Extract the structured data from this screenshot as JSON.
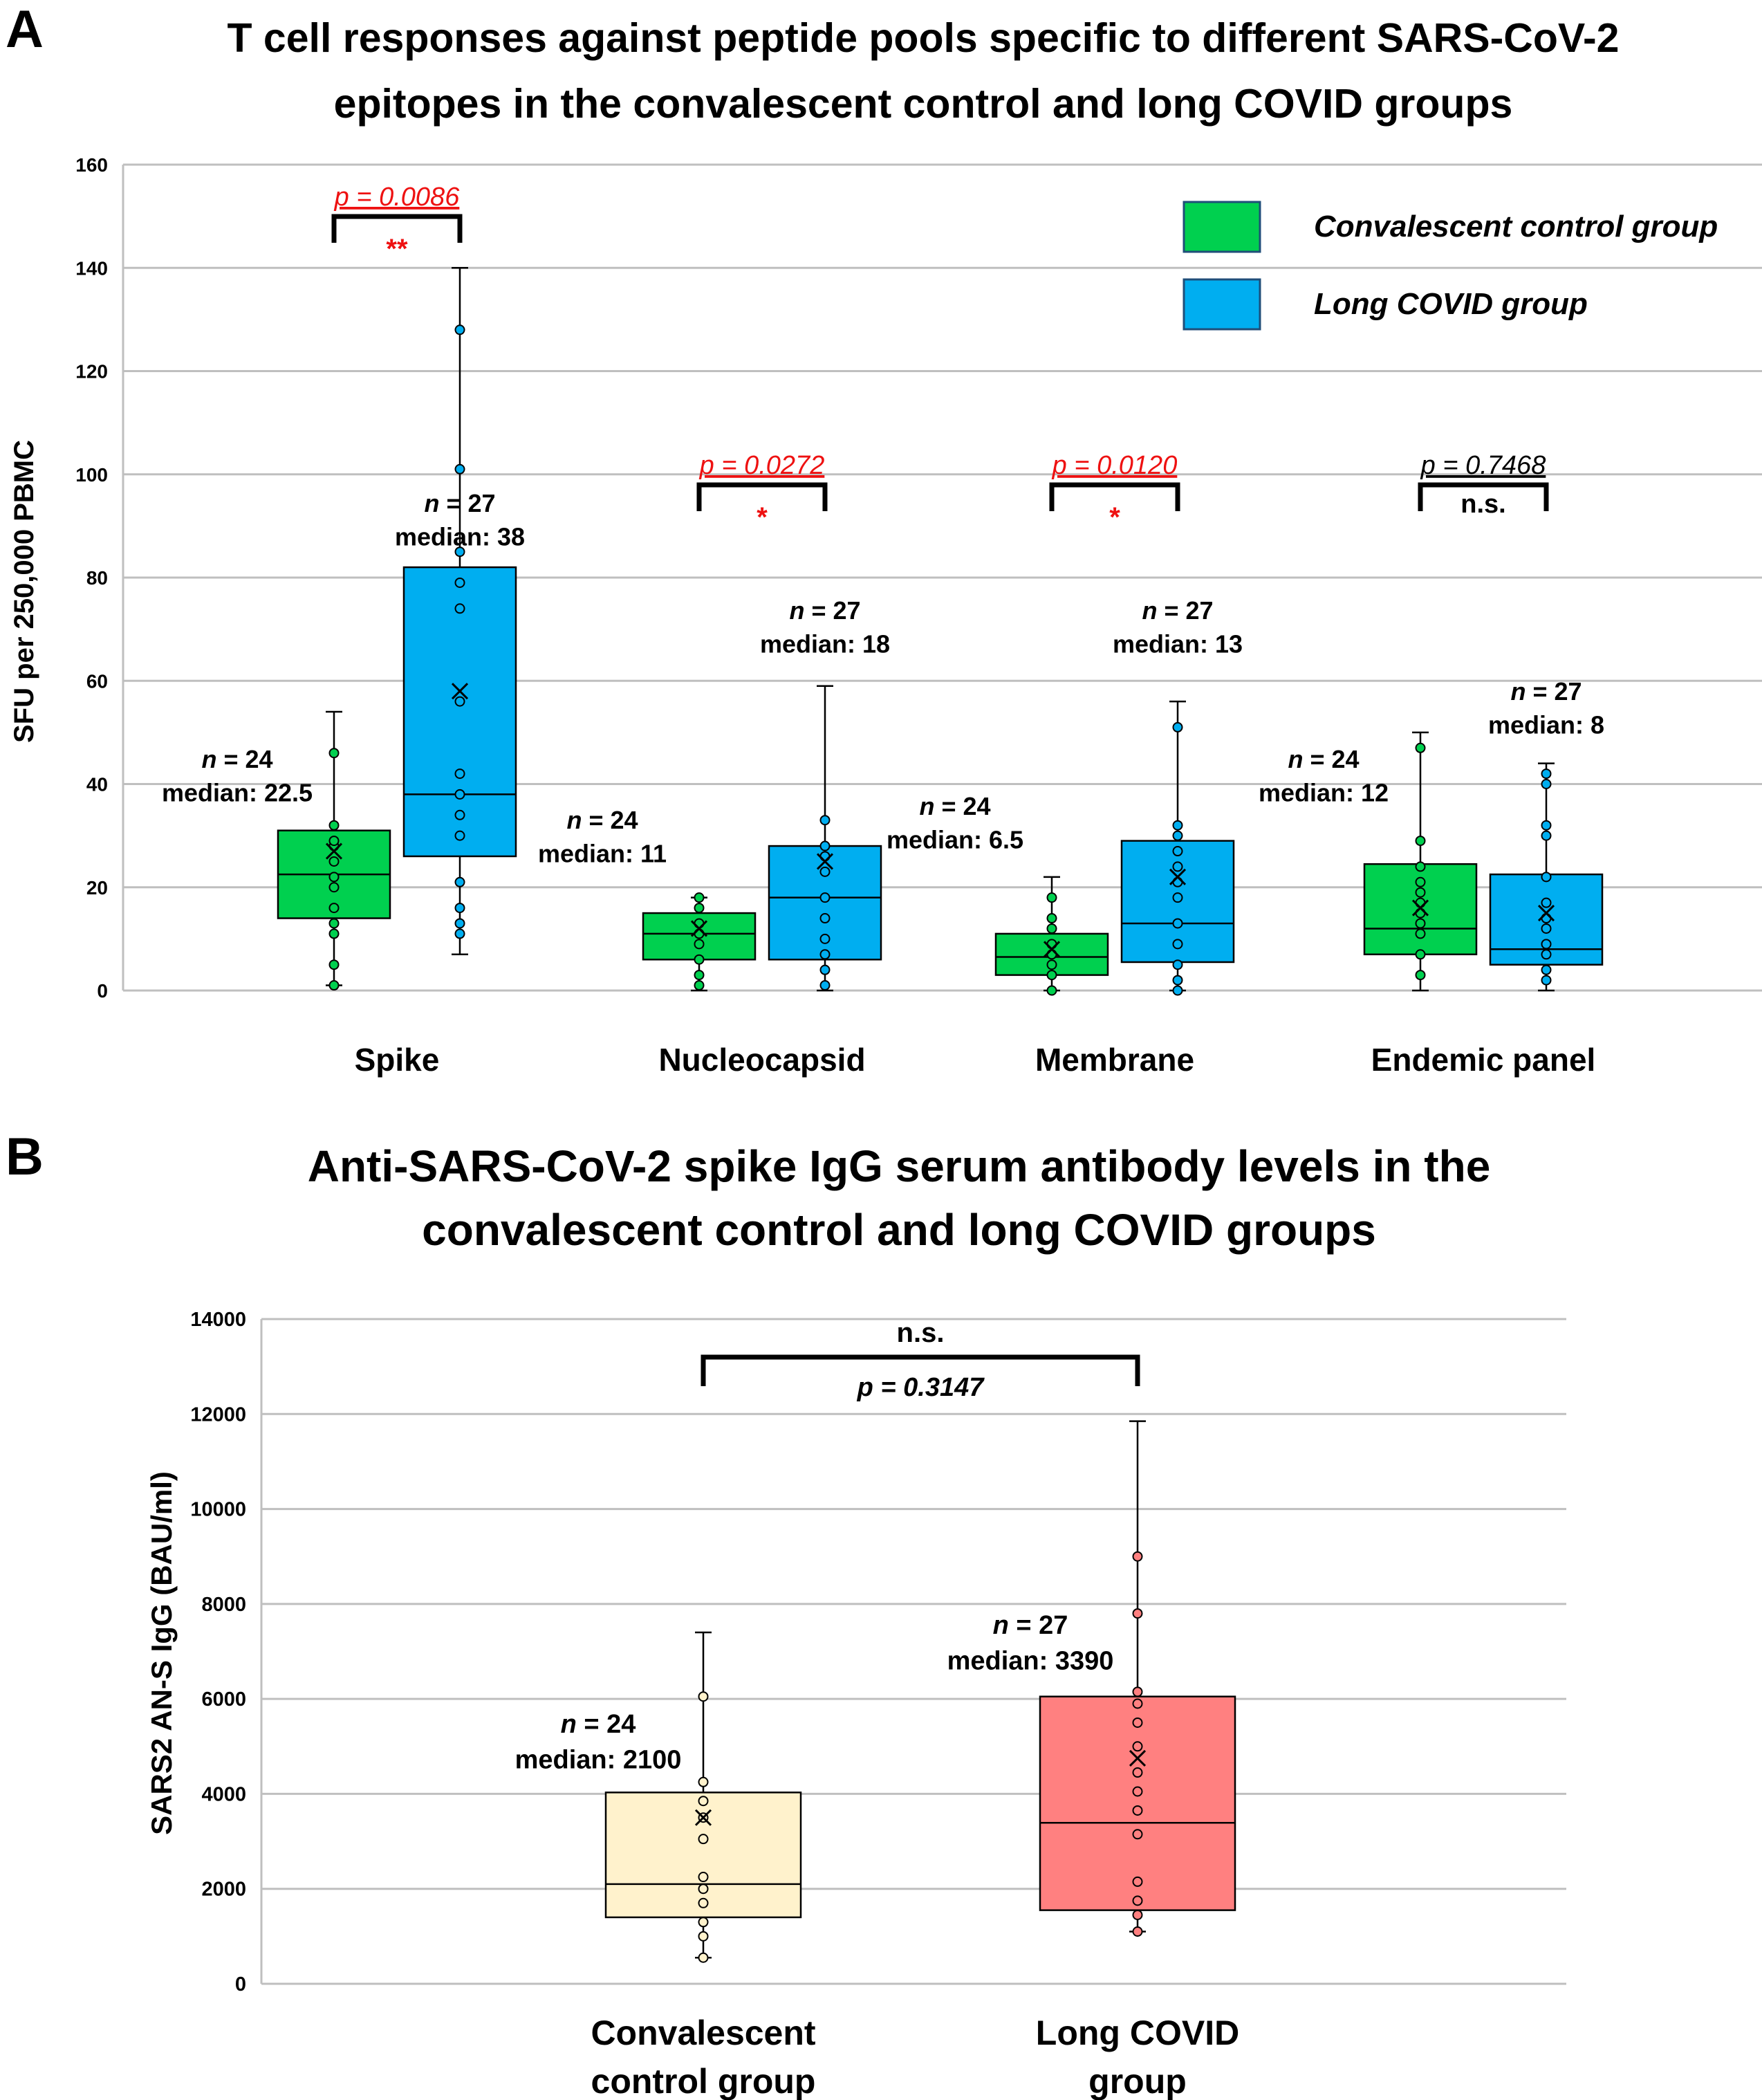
{
  "panel_a": {
    "letter": "A",
    "chart_data": {
      "type": "box",
      "title": [
        "T cell responses against peptide pools specific to different SARS-CoV-2",
        "epitopes in the convalescent control and long COVID groups"
      ],
      "ylabel": "SFU per 250,000 PBMC",
      "ylim": [
        0,
        160
      ],
      "yticks": [
        0,
        20,
        40,
        60,
        80,
        100,
        120,
        140,
        160
      ],
      "grid": true,
      "legend_position": "top-right",
      "legend": [
        {
          "name": "Convalescent control group",
          "color": "#00d04f"
        },
        {
          "name": "Long COVID group",
          "color": "#00aef0"
        }
      ],
      "categories": [
        "Spike",
        "Nucleocapsid",
        "Membrane",
        "Endemic panel"
      ],
      "groups": [
        {
          "category": "Spike",
          "boxes": [
            {
              "series": "Convalescent control group",
              "color": "#00d04f",
              "min": 1,
              "q1": 14,
              "median": 22.5,
              "q3": 31,
              "max": 54,
              "mean": 27,
              "points": [
                1,
                5,
                11,
                13,
                16,
                20,
                22,
                25,
                28,
                29,
                32,
                46
              ],
              "n_label": "n = 24",
              "median_label": "median: 22.5"
            },
            {
              "series": "Long COVID group",
              "color": "#00aef0",
              "min": 7,
              "q1": 26,
              "median": 38,
              "q3": 82,
              "max": 140,
              "mean": 58,
              "points": [
                11,
                13,
                16,
                21,
                30,
                34,
                38,
                42,
                56,
                74,
                79,
                85,
                101,
                128
              ],
              "n_label": "n = 27",
              "median_label": "median: 38"
            }
          ],
          "comparison": {
            "p_label": "p = 0.0086",
            "sig_label": "**",
            "significant": true
          }
        },
        {
          "category": "Nucleocapsid",
          "boxes": [
            {
              "series": "Convalescent control group",
              "color": "#00d04f",
              "min": 0,
              "q1": 6,
              "median": 11,
              "q3": 15,
              "max": 18,
              "mean": 12,
              "points": [
                1,
                3,
                6,
                9,
                11,
                13,
                16,
                18
              ],
              "n_label": "n = 24",
              "median_label": "median: 11"
            },
            {
              "series": "Long COVID group",
              "color": "#00aef0",
              "min": 0,
              "q1": 6,
              "median": 18,
              "q3": 28,
              "max": 59,
              "mean": 25,
              "points": [
                1,
                4,
                7,
                10,
                14,
                18,
                23,
                26,
                28,
                33
              ],
              "n_label": "n = 27",
              "median_label": "median: 18"
            }
          ],
          "comparison": {
            "p_label": "p = 0.0272",
            "sig_label": "*",
            "significant": true
          }
        },
        {
          "category": "Membrane",
          "boxes": [
            {
              "series": "Convalescent control group",
              "color": "#00d04f",
              "min": 0,
              "q1": 3,
              "median": 6.5,
              "q3": 11,
              "max": 22,
              "mean": 8,
              "points": [
                0,
                3,
                5,
                7,
                9,
                12,
                14,
                18
              ],
              "n_label": "n = 24",
              "median_label": "median: 6.5"
            },
            {
              "series": "Long COVID group",
              "color": "#00aef0",
              "min": 0,
              "q1": 5.5,
              "median": 13,
              "q3": 29,
              "max": 56,
              "mean": 22,
              "points": [
                0,
                2,
                5,
                9,
                13,
                18,
                21,
                24,
                27,
                30,
                32,
                51
              ],
              "n_label": "n = 27",
              "median_label": "median: 13"
            }
          ],
          "comparison": {
            "p_label": "p = 0.0120",
            "sig_label": "*",
            "significant": true
          }
        },
        {
          "category": "Endemic panel",
          "boxes": [
            {
              "series": "Convalescent control group",
              "color": "#00d04f",
              "min": 0,
              "q1": 7,
              "median": 12,
              "q3": 24.5,
              "max": 50,
              "mean": 16,
              "points": [
                3,
                7,
                11,
                13,
                15,
                17,
                19,
                21,
                24,
                29,
                47
              ],
              "n_label": "n = 24",
              "median_label": "median: 12"
            },
            {
              "series": "Long COVID group",
              "color": "#00aef0",
              "min": 0,
              "q1": 5,
              "median": 8,
              "q3": 22.5,
              "max": 44,
              "mean": 15,
              "points": [
                2,
                4,
                7,
                9,
                12,
                14,
                17,
                22,
                30,
                32,
                40,
                42
              ],
              "n_label": "n = 27",
              "median_label": "median: 8"
            }
          ],
          "comparison": {
            "p_label": "p = 0.7468",
            "sig_label": "n.s.",
            "significant": false
          }
        }
      ]
    }
  },
  "panel_b": {
    "letter": "B",
    "chart_data": {
      "type": "box",
      "title": [
        "Anti-SARS-CoV-2 spike IgG serum antibody levels in the",
        "convalescent control and long COVID groups"
      ],
      "ylabel": "SARS2 AN-S IgG (BAU/ml)",
      "ylim": [
        0,
        14000
      ],
      "yticks": [
        0,
        2000,
        4000,
        6000,
        8000,
        10000,
        12000,
        14000
      ],
      "grid": true,
      "categories": [
        [
          "Convalescent",
          "control group"
        ],
        [
          "Long COVID",
          "group"
        ]
      ],
      "boxes": [
        {
          "category": "Convalescent control group",
          "color": "#fff2cc",
          "min": 550,
          "q1": 1400,
          "median": 2100,
          "q3": 4030,
          "max": 7400,
          "mean": 3500,
          "points": [
            550,
            1000,
            1300,
            1700,
            2000,
            2250,
            3050,
            3500,
            3850,
            4250,
            6050
          ],
          "n_label": "n = 24",
          "median_label": "median: 2100"
        },
        {
          "category": "Long COVID group",
          "color": "#ff8080",
          "min": 1100,
          "q1": 1550,
          "median": 3390,
          "q3": 6050,
          "max": 11850,
          "mean": 4750,
          "points": [
            1100,
            1450,
            1750,
            2150,
            3150,
            3650,
            4050,
            4450,
            5000,
            5500,
            5900,
            6150,
            7800,
            9000
          ],
          "n_label": "n = 27",
          "median_label": "median: 3390"
        }
      ],
      "comparison": {
        "p_label": "p = 0.3147",
        "sig_label": "n.s.",
        "significant": false
      }
    }
  }
}
